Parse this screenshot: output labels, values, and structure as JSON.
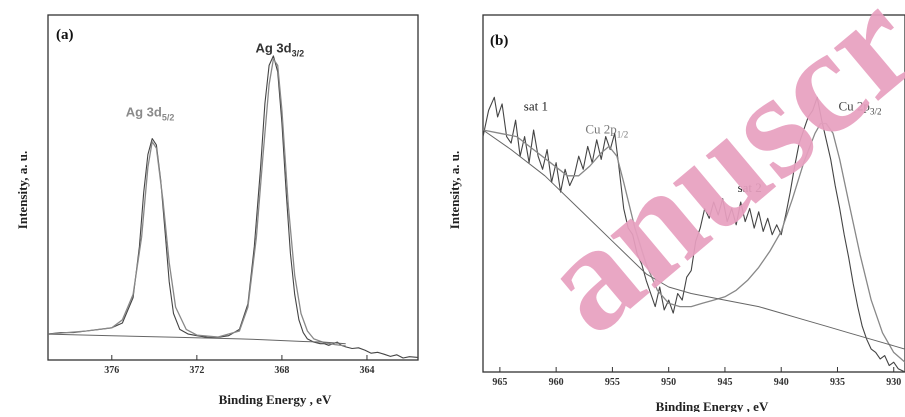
{
  "chart_data": [
    {
      "panel": "(a)",
      "type": "line",
      "xlabel": "Binding Energy , eV",
      "ylabel": "Intensity, a. u.",
      "x_reversed": true,
      "xlim": [
        379,
        361.6
      ],
      "ylim": [
        0,
        1
      ],
      "xticks": [
        376,
        372,
        368,
        364
      ],
      "grid": false,
      "annotations": [
        {
          "text": "Ag 3d",
          "sub": "5/2",
          "x": 374.2,
          "y": 0.76,
          "color": "#8a8a8a"
        },
        {
          "text": "Ag 3d",
          "sub": "3/2",
          "x": 368.1,
          "y": 0.96,
          "color": "#333333"
        }
      ],
      "series": [
        {
          "role": "experimental",
          "x": [
            379,
            378.4,
            377.8,
            377.2,
            376.6,
            376.0,
            375.5,
            375.0,
            374.7,
            374.5,
            374.3,
            374.1,
            373.9,
            373.7,
            373.5,
            373.3,
            373.1,
            372.8,
            372.4,
            372.0,
            371.5,
            371.0,
            370.5,
            370.0,
            369.6,
            369.3,
            369.0,
            368.8,
            368.6,
            368.4,
            368.2,
            368.0,
            367.8,
            367.6,
            367.4,
            367.2,
            367.0,
            366.8,
            366.5,
            366.2,
            366.0,
            365.8,
            365.6,
            365.4,
            365.2,
            365.0,
            364.7,
            364.4,
            364.1,
            363.8,
            363.5,
            363.2,
            362.9,
            362.6,
            362.3,
            362.0,
            361.6
          ],
          "y": [
            0.075,
            0.08,
            0.08,
            0.085,
            0.09,
            0.095,
            0.11,
            0.19,
            0.35,
            0.52,
            0.64,
            0.69,
            0.67,
            0.56,
            0.4,
            0.24,
            0.14,
            0.09,
            0.075,
            0.07,
            0.065,
            0.065,
            0.07,
            0.09,
            0.17,
            0.35,
            0.6,
            0.8,
            0.92,
            0.95,
            0.9,
            0.74,
            0.52,
            0.33,
            0.2,
            0.12,
            0.08,
            0.06,
            0.05,
            0.045,
            0.045,
            0.04,
            0.045,
            0.05,
            0.04,
            0.035,
            0.03,
            0.032,
            0.025,
            0.015,
            0.018,
            0.012,
            0.005,
            0.01,
            0.0,
            0.004,
            0.002
          ]
        },
        {
          "role": "fit",
          "x": [
            379,
            377.2,
            376.0,
            375.5,
            375.0,
            374.6,
            374.3,
            374.1,
            373.9,
            373.6,
            373.3,
            373.0,
            372.5,
            372.0,
            371.0,
            370.0,
            369.6,
            369.2,
            368.9,
            368.6,
            368.4,
            368.2,
            368.0,
            367.7,
            367.4,
            367.1,
            366.8,
            366.5,
            366.0,
            365.5,
            365.0
          ],
          "y": [
            0.075,
            0.085,
            0.095,
            0.12,
            0.2,
            0.38,
            0.6,
            0.68,
            0.66,
            0.5,
            0.3,
            0.16,
            0.09,
            0.072,
            0.066,
            0.085,
            0.16,
            0.38,
            0.63,
            0.86,
            0.94,
            0.92,
            0.78,
            0.48,
            0.26,
            0.14,
            0.085,
            0.06,
            0.048,
            0.042,
            0.038
          ]
        },
        {
          "role": "background",
          "x": [
            379,
            376,
            373,
            370,
            369,
            367,
            366,
            365
          ],
          "y": [
            0.075,
            0.07,
            0.065,
            0.06,
            0.058,
            0.052,
            0.05,
            0.045
          ]
        }
      ]
    },
    {
      "panel": "(b)",
      "type": "line",
      "xlabel": "Binding Energy , eV",
      "ylabel": "Intensity, a. u.",
      "x_reversed": true,
      "xlim": [
        966.5,
        929
      ],
      "ylim": [
        0,
        1
      ],
      "xticks": [
        965,
        960,
        955,
        950,
        945,
        940,
        935,
        930
      ],
      "grid": false,
      "annotations": [
        {
          "text": "sat 1",
          "x": 961.8,
          "y": 0.8,
          "color": "#222222"
        },
        {
          "text": "Cu 2p",
          "sub": "1/2",
          "x": 955.5,
          "y": 0.73,
          "color": "#777777"
        },
        {
          "text": "sat 2",
          "x": 942.8,
          "y": 0.55,
          "color": "#222222"
        },
        {
          "text": "Cu 2p",
          "sub": "3/2",
          "x": 933.0,
          "y": 0.8,
          "color": "#444444"
        }
      ],
      "series": [
        {
          "role": "experimental",
          "x": [
            966.5,
            966.0,
            965.5,
            965.2,
            964.8,
            964.4,
            964.0,
            963.6,
            963.2,
            962.8,
            962.4,
            962.0,
            961.6,
            961.2,
            960.8,
            960.4,
            960.0,
            959.6,
            959.2,
            958.8,
            958.4,
            958.0,
            957.6,
            957.2,
            956.8,
            956.4,
            956.0,
            955.6,
            955.2,
            954.8,
            954.4,
            954.0,
            953.6,
            953.2,
            952.8,
            952.4,
            952.0,
            951.6,
            951.2,
            950.8,
            950.4,
            950.0,
            949.6,
            949.2,
            948.8,
            948.4,
            948.0,
            947.6,
            947.2,
            946.8,
            946.4,
            946.0,
            945.6,
            945.2,
            944.8,
            944.4,
            944.0,
            943.6,
            943.2,
            942.8,
            942.4,
            942.0,
            941.6,
            941.2,
            940.8,
            940.4,
            940.0,
            939.6,
            939.2,
            938.8,
            938.4,
            938.0,
            937.6,
            937.2,
            936.8,
            936.4,
            936.0,
            935.6,
            935.2,
            934.8,
            934.4,
            934.0,
            933.6,
            933.2,
            932.8,
            932.4,
            932.0,
            931.6,
            931.2,
            930.8,
            930.4,
            930.0,
            929.6,
            929.0
          ],
          "y": [
            0.72,
            0.8,
            0.84,
            0.78,
            0.82,
            0.72,
            0.7,
            0.77,
            0.66,
            0.72,
            0.64,
            0.74,
            0.66,
            0.62,
            0.68,
            0.58,
            0.64,
            0.55,
            0.62,
            0.57,
            0.6,
            0.66,
            0.62,
            0.69,
            0.64,
            0.71,
            0.65,
            0.72,
            0.68,
            0.73,
            0.62,
            0.5,
            0.44,
            0.42,
            0.36,
            0.33,
            0.28,
            0.24,
            0.2,
            0.26,
            0.19,
            0.22,
            0.18,
            0.24,
            0.22,
            0.29,
            0.31,
            0.4,
            0.44,
            0.5,
            0.47,
            0.52,
            0.48,
            0.53,
            0.46,
            0.5,
            0.45,
            0.52,
            0.46,
            0.5,
            0.44,
            0.49,
            0.43,
            0.47,
            0.42,
            0.45,
            0.42,
            0.48,
            0.55,
            0.63,
            0.7,
            0.74,
            0.78,
            0.8,
            0.84,
            0.77,
            0.71,
            0.65,
            0.57,
            0.5,
            0.42,
            0.35,
            0.27,
            0.2,
            0.14,
            0.1,
            0.07,
            0.06,
            0.04,
            0.05,
            0.02,
            0.03,
            0.01,
            0.0
          ]
        },
        {
          "role": "fit",
          "x": [
            966.5,
            965.0,
            963.5,
            962.0,
            960.5,
            959.0,
            958.0,
            957.0,
            956.0,
            955.3,
            954.6,
            954.0,
            953.0,
            952.0,
            951.0,
            950.0,
            949.0,
            948.0,
            947.0,
            946.0,
            945.0,
            944.0,
            943.0,
            942.0,
            941.0,
            940.0,
            939.0,
            938.0,
            937.0,
            936.5,
            936.0,
            935.4,
            934.8,
            934.0,
            933.0,
            932.0,
            931.0,
            930.0,
            929.0
          ],
          "y": [
            0.74,
            0.73,
            0.72,
            0.68,
            0.64,
            0.6,
            0.6,
            0.63,
            0.67,
            0.69,
            0.66,
            0.58,
            0.44,
            0.33,
            0.25,
            0.21,
            0.2,
            0.2,
            0.21,
            0.22,
            0.23,
            0.25,
            0.28,
            0.32,
            0.37,
            0.43,
            0.53,
            0.64,
            0.73,
            0.76,
            0.76,
            0.73,
            0.65,
            0.52,
            0.36,
            0.22,
            0.12,
            0.06,
            0.03
          ]
        },
        {
          "role": "background",
          "x": [
            966.5,
            964,
            961,
            958,
            955,
            952,
            950,
            948,
            945,
            942,
            940,
            938,
            936,
            934,
            932,
            930,
            929
          ],
          "y": [
            0.74,
            0.68,
            0.6,
            0.5,
            0.4,
            0.3,
            0.26,
            0.24,
            0.22,
            0.2,
            0.18,
            0.16,
            0.14,
            0.12,
            0.1,
            0.08,
            0.07
          ]
        }
      ]
    }
  ],
  "watermark": {
    "text": "anuscr",
    "color": "#e8a0c0"
  }
}
